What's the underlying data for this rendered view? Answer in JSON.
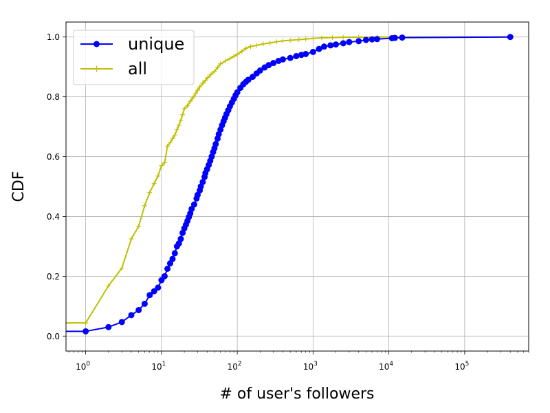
{
  "chart_data": {
    "type": "line",
    "xlabel": "# of user's followers",
    "ylabel": "CDF",
    "xscale": "log",
    "xlim": [
      0.55,
      700000
    ],
    "ylim": [
      -0.05,
      1.05
    ],
    "grid": true,
    "legend_position": "top-left",
    "x_ticks": [
      {
        "value": 1,
        "base": "10",
        "exp": "0"
      },
      {
        "value": 10,
        "base": "10",
        "exp": "1"
      },
      {
        "value": 100,
        "base": "10",
        "exp": "2"
      },
      {
        "value": 1000,
        "base": "10",
        "exp": "3"
      },
      {
        "value": 10000,
        "base": "10",
        "exp": "4"
      },
      {
        "value": 100000,
        "base": "10",
        "exp": "5"
      }
    ],
    "y_ticks": [
      "0.0",
      "0.2",
      "0.4",
      "0.6",
      "0.8",
      "1.0"
    ],
    "series": [
      {
        "name": "unique",
        "color": "#0000ff",
        "marker": "circle",
        "points": [
          [
            0.5,
            0.016
          ],
          [
            1,
            0.016
          ],
          [
            2,
            0.03
          ],
          [
            3,
            0.047
          ],
          [
            4,
            0.07
          ],
          [
            5,
            0.087
          ],
          [
            6,
            0.108
          ],
          [
            7,
            0.137
          ],
          [
            8,
            0.15
          ],
          [
            9,
            0.162
          ],
          [
            10,
            0.187
          ],
          [
            11,
            0.2
          ],
          [
            12,
            0.225
          ],
          [
            13,
            0.243
          ],
          [
            14,
            0.258
          ],
          [
            15,
            0.277
          ],
          [
            16,
            0.3
          ],
          [
            17,
            0.31
          ],
          [
            18,
            0.325
          ],
          [
            19,
            0.345
          ],
          [
            20,
            0.36
          ],
          [
            21,
            0.372
          ],
          [
            22,
            0.385
          ],
          [
            23,
            0.398
          ],
          [
            24,
            0.41
          ],
          [
            25,
            0.425
          ],
          [
            27,
            0.44
          ],
          [
            29,
            0.46
          ],
          [
            30,
            0.472
          ],
          [
            32,
            0.487
          ],
          [
            33,
            0.5
          ],
          [
            35,
            0.515
          ],
          [
            37,
            0.532
          ],
          [
            38,
            0.545
          ],
          [
            40,
            0.558
          ],
          [
            42,
            0.572
          ],
          [
            44,
            0.586
          ],
          [
            46,
            0.6
          ],
          [
            48,
            0.615
          ],
          [
            50,
            0.628
          ],
          [
            52,
            0.642
          ],
          [
            55,
            0.66
          ],
          [
            57,
            0.675
          ],
          [
            60,
            0.69
          ],
          [
            63,
            0.705
          ],
          [
            66,
            0.718
          ],
          [
            69,
            0.73
          ],
          [
            72,
            0.742
          ],
          [
            76,
            0.755
          ],
          [
            80,
            0.768
          ],
          [
            85,
            0.781
          ],
          [
            90,
            0.793
          ],
          [
            95,
            0.805
          ],
          [
            100,
            0.815
          ],
          [
            110,
            0.83
          ],
          [
            120,
            0.842
          ],
          [
            130,
            0.85
          ],
          [
            140,
            0.857
          ],
          [
            160,
            0.867
          ],
          [
            180,
            0.878
          ],
          [
            200,
            0.888
          ],
          [
            230,
            0.898
          ],
          [
            260,
            0.906
          ],
          [
            300,
            0.913
          ],
          [
            350,
            0.92
          ],
          [
            400,
            0.925
          ],
          [
            500,
            0.93
          ],
          [
            600,
            0.936
          ],
          [
            700,
            0.94
          ],
          [
            800,
            0.943
          ],
          [
            1000,
            0.95
          ],
          [
            1200,
            0.96
          ],
          [
            1400,
            0.968
          ],
          [
            1700,
            0.972
          ],
          [
            2000,
            0.975
          ],
          [
            2500,
            0.979
          ],
          [
            3000,
            0.983
          ],
          [
            4000,
            0.986
          ],
          [
            5000,
            0.99
          ],
          [
            6000,
            0.992
          ],
          [
            7000,
            0.993
          ],
          [
            11000,
            0.996
          ],
          [
            12000,
            0.997
          ],
          [
            15000,
            0.998
          ],
          [
            400000,
            1.0
          ]
        ]
      },
      {
        "name": "all",
        "color": "#bfbf00",
        "marker": "plus",
        "points": [
          [
            0.5,
            0.044
          ],
          [
            1,
            0.044
          ],
          [
            2,
            0.168
          ],
          [
            3,
            0.227
          ],
          [
            4,
            0.325
          ],
          [
            5,
            0.367
          ],
          [
            6,
            0.436
          ],
          [
            7,
            0.48
          ],
          [
            8,
            0.51
          ],
          [
            9,
            0.535
          ],
          [
            10,
            0.57
          ],
          [
            11,
            0.58
          ],
          [
            12,
            0.635
          ],
          [
            13,
            0.647
          ],
          [
            14,
            0.66
          ],
          [
            15,
            0.672
          ],
          [
            16,
            0.69
          ],
          [
            17,
            0.705
          ],
          [
            18,
            0.722
          ],
          [
            19,
            0.74
          ],
          [
            20,
            0.76
          ],
          [
            22,
            0.77
          ],
          [
            24,
            0.785
          ],
          [
            26,
            0.797
          ],
          [
            28,
            0.81
          ],
          [
            30,
            0.822
          ],
          [
            32,
            0.833
          ],
          [
            35,
            0.845
          ],
          [
            38,
            0.855
          ],
          [
            41,
            0.865
          ],
          [
            45,
            0.875
          ],
          [
            50,
            0.885
          ],
          [
            55,
            0.898
          ],
          [
            60,
            0.91
          ],
          [
            70,
            0.92
          ],
          [
            80,
            0.928
          ],
          [
            90,
            0.935
          ],
          [
            100,
            0.942
          ],
          [
            115,
            0.952
          ],
          [
            130,
            0.962
          ],
          [
            150,
            0.968
          ],
          [
            180,
            0.972
          ],
          [
            220,
            0.977
          ],
          [
            270,
            0.98
          ],
          [
            330,
            0.984
          ],
          [
            400,
            0.987
          ],
          [
            500,
            0.989
          ],
          [
            650,
            0.991
          ],
          [
            800,
            0.993
          ],
          [
            1000,
            0.995
          ],
          [
            1300,
            0.997
          ],
          [
            1800,
            0.998
          ],
          [
            2500,
            0.999
          ],
          [
            4000,
            0.999
          ],
          [
            7000,
            1.0
          ],
          [
            15000,
            1.0
          ],
          [
            400000,
            1.0
          ]
        ]
      }
    ]
  }
}
